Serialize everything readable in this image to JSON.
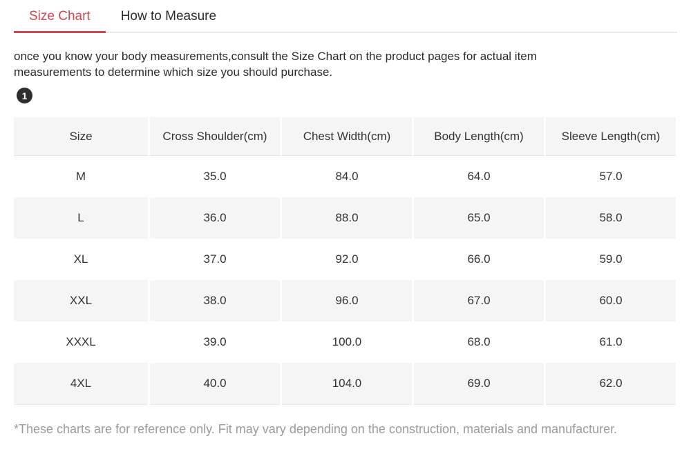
{
  "tabs": {
    "size_chart": "Size Chart",
    "how_to_measure": "How to Measure"
  },
  "intro_text": "once you know your body measurements,consult the Size Chart on the product pages for actual item measurements to determine which size you should purchase.",
  "badge_number": "1",
  "colors": {
    "accent_red": "#c94a53",
    "table_header_bg": "#f5f5f5",
    "stripe_bg": "#f5f5f5",
    "text_dark": "#2b2b2b",
    "footnote_gray": "#9b9b9b"
  },
  "table": {
    "headers": [
      "Size",
      "Cross Shoulder(cm)",
      "Chest Width(cm)",
      "Body Length(cm)",
      "Sleeve Length(cm)"
    ],
    "rows": [
      [
        "M",
        "35.0",
        "84.0",
        "64.0",
        "57.0"
      ],
      [
        "L",
        "36.0",
        "88.0",
        "65.0",
        "58.0"
      ],
      [
        "XL",
        "37.0",
        "92.0",
        "66.0",
        "59.0"
      ],
      [
        "XXL",
        "38.0",
        "96.0",
        "67.0",
        "60.0"
      ],
      [
        "XXXL",
        "39.0",
        "100.0",
        "68.0",
        "61.0"
      ],
      [
        "4XL",
        "40.0",
        "104.0",
        "69.0",
        "62.0"
      ]
    ]
  },
  "footnote": "*These charts are for reference only. Fit may vary depending on the construction, materials and manufacturer."
}
